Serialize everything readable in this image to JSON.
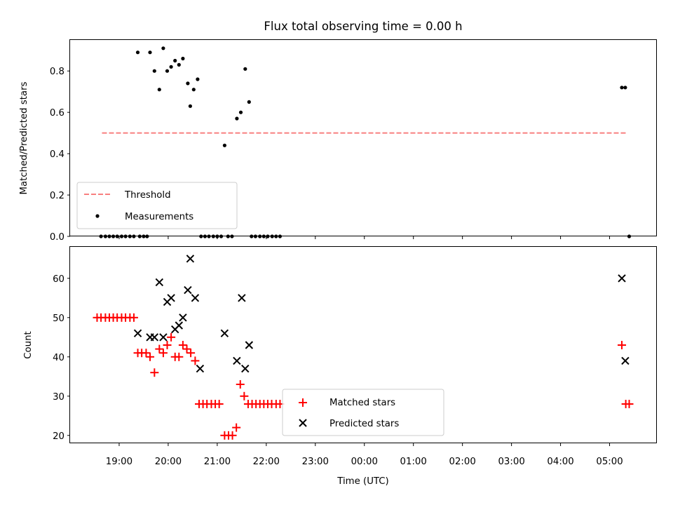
{
  "chart_data": [
    {
      "type": "scatter",
      "title": "Flux total observing time = 0.00 h",
      "xlabel": "",
      "ylabel": "Matched/Predicted stars",
      "ylim": [
        0,
        0.95
      ],
      "yticks": [
        0.0,
        0.2,
        0.4,
        0.6,
        0.8
      ],
      "ytick_labels": [
        "0.0",
        "0.2",
        "0.4",
        "0.6",
        "0.8"
      ],
      "legend_position": "lower-left",
      "series": [
        {
          "name": "Threshold",
          "kind": "line",
          "style": "dashed",
          "color": "#f87f7f",
          "x": [
            18.65,
            29.35
          ],
          "y": [
            0.5,
            0.5
          ]
        },
        {
          "name": "Measurements",
          "kind": "scatter",
          "marker": "dot",
          "color": "#000000",
          "x": [
            19.38,
            19.63,
            19.72,
            19.82,
            19.9,
            19.98,
            20.06,
            20.14,
            20.22,
            20.3,
            20.4,
            20.45,
            20.52,
            20.6,
            21.15,
            21.4,
            21.48,
            21.57,
            21.65,
            29.25,
            29.32,
            18.63,
            18.72,
            18.8,
            18.88,
            18.96,
            19.05,
            19.13,
            19.22,
            19.3,
            19.42,
            19.5,
            19.57,
            20.67,
            20.75,
            20.83,
            20.92,
            21.0,
            21.08,
            21.22,
            21.3,
            21.7,
            21.78,
            21.87,
            21.95,
            22.03,
            22.12,
            22.2,
            22.28,
            29.4
          ],
          "y": [
            0.89,
            0.89,
            0.8,
            0.71,
            0.91,
            0.8,
            0.82,
            0.85,
            0.83,
            0.86,
            0.74,
            0.63,
            0.71,
            0.76,
            0.44,
            0.57,
            0.6,
            0.81,
            0.65,
            0.72,
            0.72,
            0,
            0,
            0,
            0,
            0,
            0,
            0,
            0,
            0,
            0,
            0,
            0,
            0,
            0,
            0,
            0,
            0,
            0,
            0,
            0,
            0,
            0,
            0,
            0,
            0,
            0,
            0,
            0,
            0
          ]
        }
      ]
    },
    {
      "type": "scatter",
      "title": "",
      "xlabel": "Time (UTC)",
      "ylabel": "Count",
      "ylim": [
        18,
        68
      ],
      "yticks": [
        20,
        30,
        40,
        50,
        60
      ],
      "ytick_labels": [
        "20",
        "30",
        "40",
        "50",
        "60"
      ],
      "x_range_hours": [
        18.0,
        29.95
      ],
      "xticks": [
        19,
        20,
        21,
        22,
        23,
        24,
        25,
        26,
        27,
        28,
        29
      ],
      "xtick_labels": [
        "19:00",
        "20:00",
        "21:00",
        "22:00",
        "23:00",
        "00:00",
        "01:00",
        "02:00",
        "03:00",
        "04:00",
        "05:00"
      ],
      "legend_position": "lower-center",
      "series": [
        {
          "name": "Matched stars",
          "kind": "scatter",
          "marker": "plus",
          "color": "#ff0000",
          "x": [
            18.55,
            18.63,
            18.72,
            18.8,
            18.88,
            18.96,
            19.05,
            19.13,
            19.22,
            19.3,
            19.38,
            19.46,
            19.55,
            19.63,
            19.72,
            19.82,
            19.9,
            19.98,
            20.06,
            20.14,
            20.22,
            20.3,
            20.38,
            20.46,
            20.55,
            20.63,
            20.71,
            20.79,
            20.88,
            20.96,
            21.04,
            21.15,
            21.23,
            21.31,
            21.39,
            21.47,
            21.55,
            21.63,
            21.71,
            21.79,
            21.87,
            21.95,
            22.03,
            22.11,
            22.2,
            22.28,
            29.25,
            29.33,
            29.4
          ],
          "y": [
            50,
            50,
            50,
            50,
            50,
            50,
            50,
            50,
            50,
            50,
            41,
            41,
            41,
            40,
            36,
            42,
            41,
            43,
            45,
            40,
            40,
            43,
            42,
            41,
            39,
            28,
            28,
            28,
            28,
            28,
            28,
            20,
            20,
            20,
            22,
            33,
            30,
            28,
            28,
            28,
            28,
            28,
            28,
            28,
            28,
            28,
            43,
            28,
            28
          ]
        },
        {
          "name": "Predicted stars",
          "kind": "scatter",
          "marker": "x",
          "color": "#000000",
          "x": [
            19.38,
            19.63,
            19.72,
            19.82,
            19.9,
            19.98,
            20.06,
            20.14,
            20.22,
            20.3,
            20.4,
            20.45,
            20.55,
            20.65,
            21.15,
            21.4,
            21.5,
            21.57,
            21.65,
            29.25,
            29.32
          ],
          "y": [
            46,
            45,
            45,
            59,
            45,
            54,
            55,
            47,
            48,
            50,
            57,
            65,
            55,
            37,
            46,
            39,
            55,
            37,
            43,
            60,
            39
          ]
        }
      ]
    }
  ]
}
